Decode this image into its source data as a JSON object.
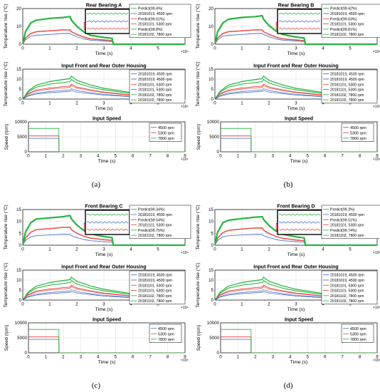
{
  "colors": {
    "green": "#1fb03a",
    "red": "#e0453b",
    "blue": "#3b64c8",
    "grid": "#dcdcdc",
    "inset_border": "#000000",
    "zoom_box": "#e0212b"
  },
  "figure": {
    "panels": [
      {
        "label": "(a)",
        "title": "Rear Bearing A",
        "legend": [
          "Predict(99.4%)",
          "20181019, 4500 rpm",
          "Predict(99.61%)",
          "20181101, 5300 rpm",
          "Predict(99.8%)",
          "20181102, 7800 rpm"
        ]
      },
      {
        "label": "(b)",
        "title": "Rear Bearing B",
        "legend": [
          "Predict(99.42%)",
          "20181019, 4500 rpm",
          "Predict(99.63%)",
          "20181101, 5300 rpm",
          "Predict(99.81%)",
          "20181102, 7800 rpm"
        ]
      },
      {
        "label": "(c)",
        "title": "Front Bearing C",
        "legend": [
          "Predict(99.34%)",
          "20181019, 4500 rpm",
          "Predict(99.54%)",
          "20181101, 5300 rpm",
          "Predict(99.75%)",
          "20181102, 7800 rpm"
        ]
      },
      {
        "label": "(d)",
        "title": "Front Bearing D",
        "legend": [
          "Predict(99.3%)",
          "20181019, 4500 rpm",
          "Predict(99.51%)",
          "20181101, 5300 rpm",
          "Predict(99.74%)",
          "20181102, 7800 rpm"
        ]
      }
    ],
    "housing": {
      "title": "Input Front and Rear Outer Housing",
      "legend": [
        "20181019, 4500 rpm",
        "20181019, 4500 rpm",
        "20181101, 5300 rpm",
        "20181101, 5300 rpm",
        "20181102, 7800 rpm",
        "20181102, 7800 rpm"
      ]
    },
    "speed": {
      "title": "Input Speed",
      "legend": [
        "4500 rpm",
        "5300 rpm",
        "7800 rpm"
      ]
    },
    "ylabel_temp": "Temperature rise (°C)",
    "ylabel_speed": "Speed (rpm)",
    "xlabel": "Time (s)",
    "x_exponent": "×10⁴"
  },
  "chart_data": [
    {
      "type": "line",
      "title": "Rear Bearing A",
      "xlabel": "Time (s)",
      "ylabel": "Temperature rise (°C)",
      "xlim": [
        0,
        60000
      ],
      "ylim": [
        0,
        20
      ],
      "xticks": [
        0,
        1,
        2,
        3,
        4,
        5
      ],
      "yticks": [
        0,
        10,
        20
      ],
      "x_scale_note": "×10^4",
      "series": [
        {
          "name": "20181019, 4500 rpm",
          "x": [
            0,
            1000,
            3000,
            5000,
            10000,
            15000,
            17500,
            18000,
            20000,
            22500,
            25000,
            30000,
            33000,
            33500,
            60000
          ],
          "y": [
            0,
            2.5,
            4.5,
            5,
            5.5,
            6,
            6,
            5.5,
            4.2,
            3,
            2.3,
            1.8,
            1.5,
            0,
            0
          ]
        },
        {
          "name": "20181101, 5300 rpm",
          "x": [
            0,
            1000,
            3000,
            5000,
            10000,
            15000,
            17500,
            18000,
            20000,
            22500,
            25000,
            30000,
            33000,
            33500,
            60000
          ],
          "y": [
            0,
            3.5,
            6,
            7,
            7.5,
            8,
            8,
            7,
            5.5,
            4,
            3,
            2.4,
            2,
            0,
            0
          ]
        },
        {
          "name": "20181102, 7800 rpm",
          "x": [
            0,
            1000,
            3000,
            5000,
            10000,
            15000,
            17500,
            18000,
            20000,
            22500,
            25000,
            30000,
            33000,
            33500,
            60000
          ],
          "y": [
            0,
            7,
            12,
            13.5,
            14.5,
            15,
            15.5,
            13.5,
            10,
            7,
            5,
            3.8,
            3.3,
            0,
            0
          ]
        }
      ]
    },
    {
      "type": "line",
      "title": "Rear Bearing B",
      "xlabel": "Time (s)",
      "ylabel": "Temperature rise (°C)",
      "xlim": [
        0,
        60000
      ],
      "ylim": [
        0,
        20
      ],
      "xticks": [
        0,
        1,
        2,
        3,
        4,
        5
      ],
      "yticks": [
        0,
        10,
        20
      ],
      "x_scale_note": "×10^4",
      "series": [
        {
          "name": "20181019, 4500 rpm",
          "x": [
            0,
            1000,
            3000,
            5000,
            10000,
            15000,
            17500,
            18000,
            20000,
            22500,
            25000,
            30000,
            33000,
            33500,
            60000
          ],
          "y": [
            0,
            2.5,
            4.5,
            5,
            5.5,
            6,
            6,
            5.5,
            4.2,
            3,
            2.3,
            1.8,
            1.5,
            0,
            0
          ]
        },
        {
          "name": "20181101, 5300 rpm",
          "x": [
            0,
            1000,
            3000,
            5000,
            10000,
            15000,
            17500,
            18000,
            20000,
            22500,
            25000,
            30000,
            33000,
            33500,
            60000
          ],
          "y": [
            0,
            3.5,
            6,
            7,
            7.5,
            8,
            8,
            7,
            5.5,
            4,
            3,
            2.4,
            2,
            0,
            0
          ]
        },
        {
          "name": "20181102, 7800 rpm",
          "x": [
            0,
            1000,
            3000,
            5000,
            10000,
            15000,
            17500,
            18000,
            20000,
            22500,
            25000,
            30000,
            33000,
            33500,
            60000
          ],
          "y": [
            0,
            7,
            12,
            14,
            15,
            15.5,
            16,
            14,
            10.5,
            7.5,
            5.5,
            4,
            3.5,
            0,
            0
          ]
        }
      ]
    },
    {
      "type": "line",
      "title": "Front Bearing C",
      "xlabel": "Time (s)",
      "ylabel": "Temperature rise (°C)",
      "xlim": [
        0,
        60000
      ],
      "ylim": [
        0,
        15
      ],
      "xticks": [
        0,
        1,
        2,
        3,
        4,
        5
      ],
      "yticks": [
        0,
        5,
        10,
        15
      ],
      "x_scale_note": "×10^4",
      "series": [
        {
          "name": "20181019, 4500 rpm",
          "x": [
            0,
            1000,
            3000,
            5000,
            10000,
            15000,
            17500,
            18000,
            20000,
            22500,
            25000,
            30000,
            33000,
            33500,
            60000
          ],
          "y": [
            0,
            2,
            3.5,
            4,
            4.3,
            4.5,
            4.5,
            4,
            3.2,
            2.4,
            1.9,
            1.5,
            1.3,
            0,
            0
          ]
        },
        {
          "name": "20181101, 5300 rpm",
          "x": [
            0,
            1000,
            3000,
            5000,
            10000,
            15000,
            17500,
            18000,
            20000,
            22500,
            25000,
            30000,
            33000,
            33500,
            60000
          ],
          "y": [
            0,
            3,
            5.5,
            6.5,
            7,
            7.5,
            7.5,
            6.5,
            5,
            3.8,
            3,
            2.3,
            2,
            0,
            0
          ]
        },
        {
          "name": "20181102, 7800 rpm",
          "x": [
            0,
            1000,
            3000,
            5000,
            10000,
            15000,
            17500,
            18000,
            20000,
            22500,
            25000,
            30000,
            33000,
            33500,
            60000
          ],
          "y": [
            0,
            5.5,
            9.5,
            11,
            11.5,
            12,
            12.5,
            11,
            8.5,
            6.2,
            4.8,
            3.6,
            3.2,
            0,
            0
          ]
        }
      ]
    },
    {
      "type": "line",
      "title": "Front Bearing D",
      "xlabel": "Time (s)",
      "ylabel": "Temperature rise (°C)",
      "xlim": [
        0,
        60000
      ],
      "ylim": [
        0,
        15
      ],
      "xticks": [
        0,
        1,
        2,
        3,
        4,
        5
      ],
      "yticks": [
        0,
        5,
        10,
        15
      ],
      "x_scale_note": "×10^4",
      "series": [
        {
          "name": "20181019, 4500 rpm",
          "x": [
            0,
            1000,
            3000,
            5000,
            10000,
            15000,
            17500,
            18000,
            20000,
            22500,
            25000,
            30000,
            33000,
            33500,
            60000
          ],
          "y": [
            0,
            2,
            3.5,
            4,
            4.3,
            4.5,
            4.5,
            4,
            3.2,
            2.4,
            1.9,
            1.5,
            1.3,
            0,
            0
          ]
        },
        {
          "name": "20181101, 5300 rpm",
          "x": [
            0,
            1000,
            3000,
            5000,
            10000,
            15000,
            17500,
            18000,
            20000,
            22500,
            25000,
            30000,
            33000,
            33500,
            60000
          ],
          "y": [
            0,
            3,
            5.3,
            6.2,
            6.8,
            7.2,
            7.3,
            6.3,
            4.9,
            3.7,
            2.9,
            2.2,
            1.9,
            0,
            0
          ]
        },
        {
          "name": "20181102, 7800 rpm",
          "x": [
            0,
            1000,
            3000,
            5000,
            10000,
            15000,
            17500,
            18000,
            20000,
            22500,
            25000,
            30000,
            33000,
            33500,
            60000
          ],
          "y": [
            0,
            5.5,
            9.5,
            10.5,
            11.2,
            11.8,
            12,
            10.8,
            8.3,
            6,
            4.6,
            3.5,
            3.1,
            0,
            0
          ]
        }
      ]
    },
    {
      "type": "line",
      "title": "Input Front and Rear Outer Housing",
      "xlabel": "Time (s)",
      "ylabel": "Temperature rise (°C)",
      "xlim": [
        0,
        60000
      ],
      "ylim": [
        0,
        15
      ],
      "xticks": [
        0,
        1,
        2,
        3,
        4,
        5
      ],
      "yticks": [
        0,
        5,
        10,
        15
      ],
      "x_scale_note": "×10^4",
      "series": [
        {
          "name": "20181019, 4500 rpm",
          "x": [
            0,
            2000,
            5000,
            10000,
            15000,
            17500,
            18000,
            20000,
            25000,
            30000,
            40000,
            50000,
            60000
          ],
          "y": [
            0,
            1.5,
            2.5,
            3.2,
            3.6,
            3.8,
            4.3,
            3.5,
            2.7,
            2,
            1.2,
            0.7,
            0.4
          ]
        },
        {
          "name": "20181019, 4500 rpm",
          "x": [
            0,
            2000,
            5000,
            10000,
            15000,
            17500,
            18000,
            20000,
            25000,
            30000,
            40000,
            50000,
            60000
          ],
          "y": [
            0,
            1.8,
            3,
            3.8,
            4.3,
            4.5,
            5.2,
            4.2,
            3.2,
            2.4,
            1.4,
            0.8,
            0.5
          ]
        },
        {
          "name": "20181101, 5300 rpm",
          "x": [
            0,
            2000,
            5000,
            10000,
            15000,
            17500,
            18000,
            20000,
            25000,
            30000,
            40000,
            50000,
            60000
          ],
          "y": [
            0,
            2.5,
            4,
            5,
            5.6,
            5.9,
            6.8,
            5.5,
            4.2,
            3.2,
            1.9,
            1.1,
            0.7
          ]
        },
        {
          "name": "20181101, 5300 rpm",
          "x": [
            0,
            2000,
            5000,
            10000,
            15000,
            17500,
            18000,
            20000,
            25000,
            30000,
            40000,
            50000,
            60000
          ],
          "y": [
            0,
            2.8,
            4.5,
            5.6,
            6.2,
            6.5,
            7.5,
            6.1,
            4.6,
            3.5,
            2.1,
            1.2,
            0.8
          ]
        },
        {
          "name": "20181102, 7800 rpm",
          "x": [
            0,
            2000,
            5000,
            10000,
            15000,
            17500,
            18000,
            20000,
            25000,
            30000,
            40000,
            50000,
            60000
          ],
          "y": [
            0,
            3.5,
            6,
            7.5,
            8.3,
            8.7,
            9.8,
            8,
            6,
            4.6,
            2.8,
            1.7,
            1.1
          ]
        },
        {
          "name": "20181102, 7800 rpm",
          "x": [
            0,
            2000,
            5000,
            10000,
            15000,
            17500,
            18000,
            20000,
            25000,
            30000,
            40000,
            50000,
            60000
          ],
          "y": [
            0,
            4,
            7,
            8.8,
            9.8,
            10.2,
            11.5,
            9.4,
            7.1,
            5.4,
            3.3,
            2,
            1.3
          ]
        }
      ]
    },
    {
      "type": "line",
      "title": "Input Speed",
      "xlabel": "Time (s)",
      "ylabel": "Speed (rpm)",
      "xlim": [
        0,
        90000
      ],
      "ylim": [
        0,
        10000
      ],
      "xticks": [
        0,
        1,
        2,
        3,
        4,
        5,
        6,
        7,
        8,
        9
      ],
      "yticks": [
        0,
        5000,
        10000
      ],
      "x_scale_note": "×10^4",
      "series": [
        {
          "name": "4500 rpm",
          "x": [
            0,
            17500,
            17500,
            90000
          ],
          "y": [
            4500,
            4500,
            0,
            0
          ]
        },
        {
          "name": "5300 rpm",
          "x": [
            0,
            17500,
            17500,
            90000
          ],
          "y": [
            5300,
            5300,
            0,
            0
          ]
        },
        {
          "name": "7800 rpm",
          "x": [
            0,
            17500,
            17500,
            90000
          ],
          "y": [
            7800,
            7800,
            0,
            0
          ]
        }
      ]
    }
  ]
}
